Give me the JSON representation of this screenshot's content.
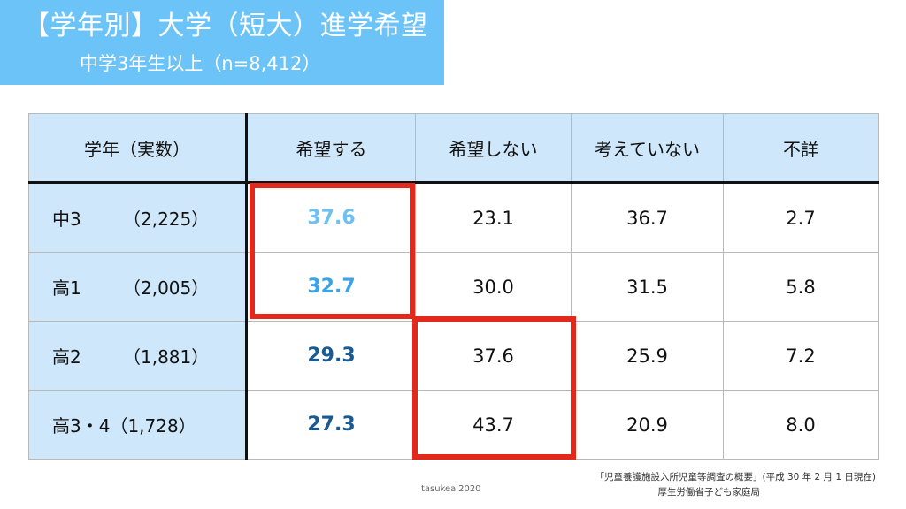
{
  "title": {
    "main": "【学年別】大学（短大）進学希望",
    "sub": "中学3年生以上（n=8,412）"
  },
  "table": {
    "headers": [
      "学年（実数）",
      "希望する",
      "希望しない",
      "考えていない",
      "不詳"
    ],
    "rows": [
      {
        "grade": "中3",
        "count": "（2,225）",
        "hope": "37.6",
        "no_hope": "23.1",
        "not_thinking": "36.7",
        "unknown": "2.7"
      },
      {
        "grade": "高1",
        "count": "（2,005）",
        "hope": "32.7",
        "no_hope": "30.0",
        "not_thinking": "31.5",
        "unknown": "5.8"
      },
      {
        "grade": "高2",
        "count": "（1,881）",
        "hope": "29.3",
        "no_hope": "37.6",
        "not_thinking": "25.9",
        "unknown": "7.2"
      },
      {
        "grade": "高3・4",
        "count": "（1,728）",
        "hope": "27.3",
        "no_hope": "43.7",
        "not_thinking": "20.9",
        "unknown": "8.0"
      }
    ]
  },
  "source": {
    "line1": "「児童養護施設入所児童等調査の概要」(平成 30 年 2 月 1 日現在)",
    "line2": "厚生労働省子ども家庭局"
  },
  "credit": "tasukeai2020",
  "colors": {
    "banner": "#6cc3f7",
    "header_bg": "#cfe7fa",
    "highlight": "#e3281c",
    "hope_light": "#6dc1f2",
    "hope_mid": "#3aa3e8",
    "hope_dark": "#1a5a93"
  }
}
